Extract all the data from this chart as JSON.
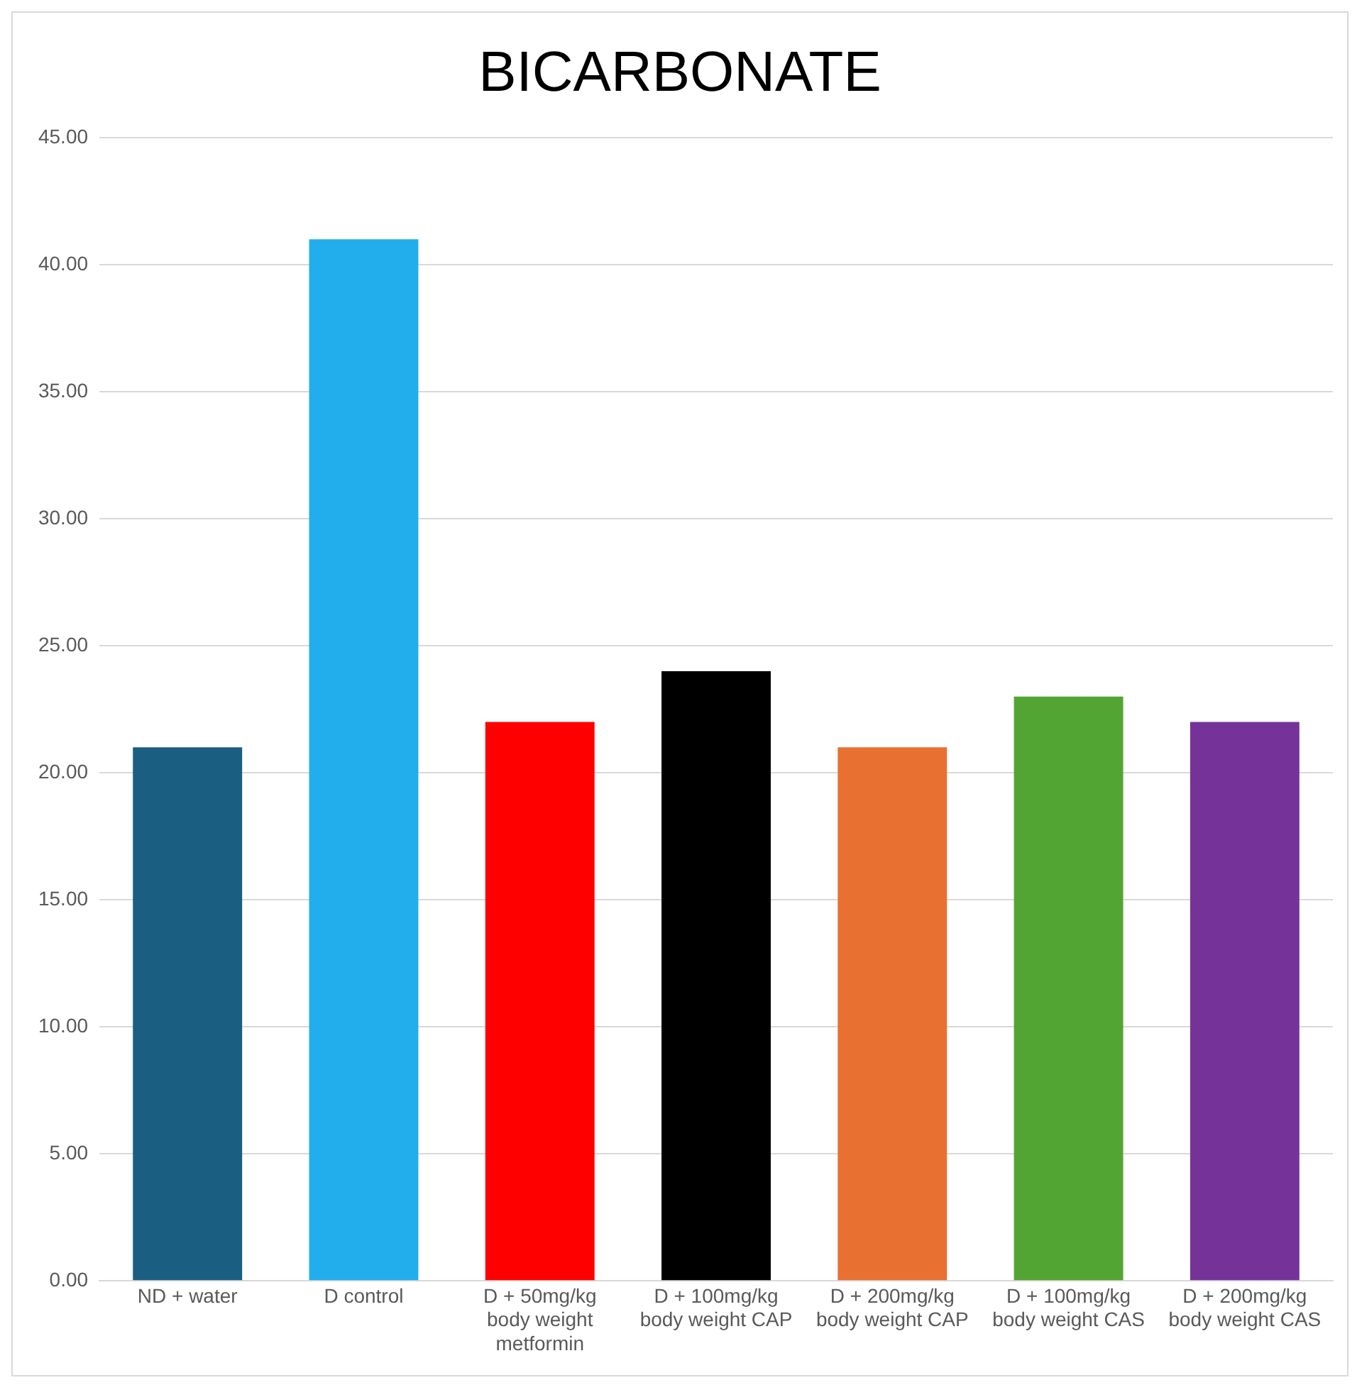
{
  "chart_data": {
    "type": "bar",
    "title": "BICARBONATE",
    "categories": [
      "ND + water",
      "D control",
      "D + 50mg/kg body weight metformin",
      "D + 100mg/kg body weight CAP",
      "D + 200mg/kg body weight CAP",
      "D + 100mg/kg body weight CAS",
      "D + 200mg/kg body weight CAS"
    ],
    "values": [
      21,
      41,
      22,
      24,
      21,
      23,
      22
    ],
    "colors": [
      "#1a5f82",
      "#22aeed",
      "#ff0000",
      "#000000",
      "#e87030",
      "#52a532",
      "#753399"
    ],
    "ylim": [
      0,
      45
    ],
    "yticks": [
      {
        "value": 0,
        "label": "0.00"
      },
      {
        "value": 5,
        "label": "5.00"
      },
      {
        "value": 10,
        "label": "10.00"
      },
      {
        "value": 15,
        "label": "15.00"
      },
      {
        "value": 20,
        "label": "20.00"
      },
      {
        "value": 25,
        "label": "25.00"
      },
      {
        "value": 30,
        "label": "30.00"
      },
      {
        "value": 35,
        "label": "35.00"
      },
      {
        "value": 40,
        "label": "40.00"
      },
      {
        "value": 45,
        "label": "45.00"
      }
    ],
    "grid": "y"
  }
}
